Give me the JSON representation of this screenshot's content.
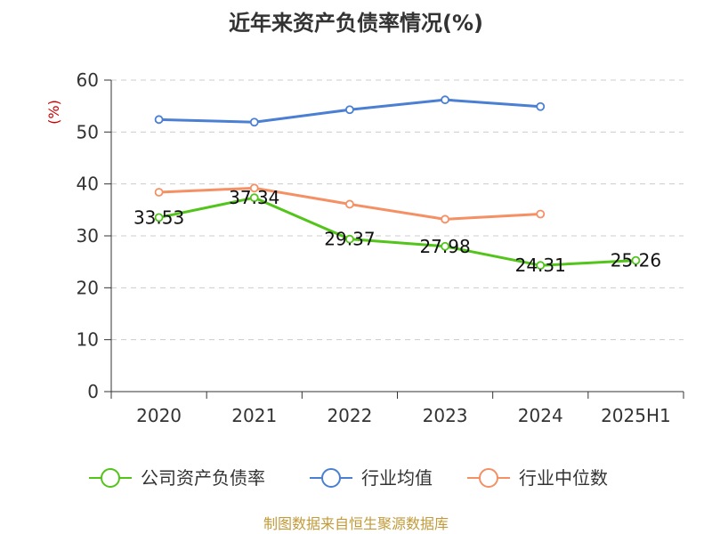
{
  "chart_data": {
    "type": "line",
    "title": "近年来资产负债率情况(%)",
    "ylabel": "(%)",
    "xlabel": "",
    "categories": [
      "2020",
      "2021",
      "2022",
      "2023",
      "2024",
      "2025H1"
    ],
    "ylim": [
      0,
      60
    ],
    "yticks": [
      0,
      10,
      20,
      30,
      40,
      50,
      60
    ],
    "grid": true,
    "legend_position": "bottom",
    "series": [
      {
        "name": "公司资产负债率",
        "color": "#52c41a",
        "values": [
          33.53,
          37.34,
          29.37,
          27.98,
          24.31,
          25.26
        ],
        "data_labels": [
          "33.53",
          "37.34",
          "29.37",
          "27.98",
          "24.31",
          "25.26"
        ]
      },
      {
        "name": "行业均值",
        "color": "#4a7fd4",
        "values": [
          52.4,
          51.9,
          54.3,
          56.2,
          54.9,
          null
        ]
      },
      {
        "name": "行业中位数",
        "color": "#f59064",
        "values": [
          38.4,
          39.2,
          36.1,
          33.2,
          34.2,
          null
        ]
      }
    ]
  },
  "source_note": "制图数据来自恒生聚源数据库"
}
